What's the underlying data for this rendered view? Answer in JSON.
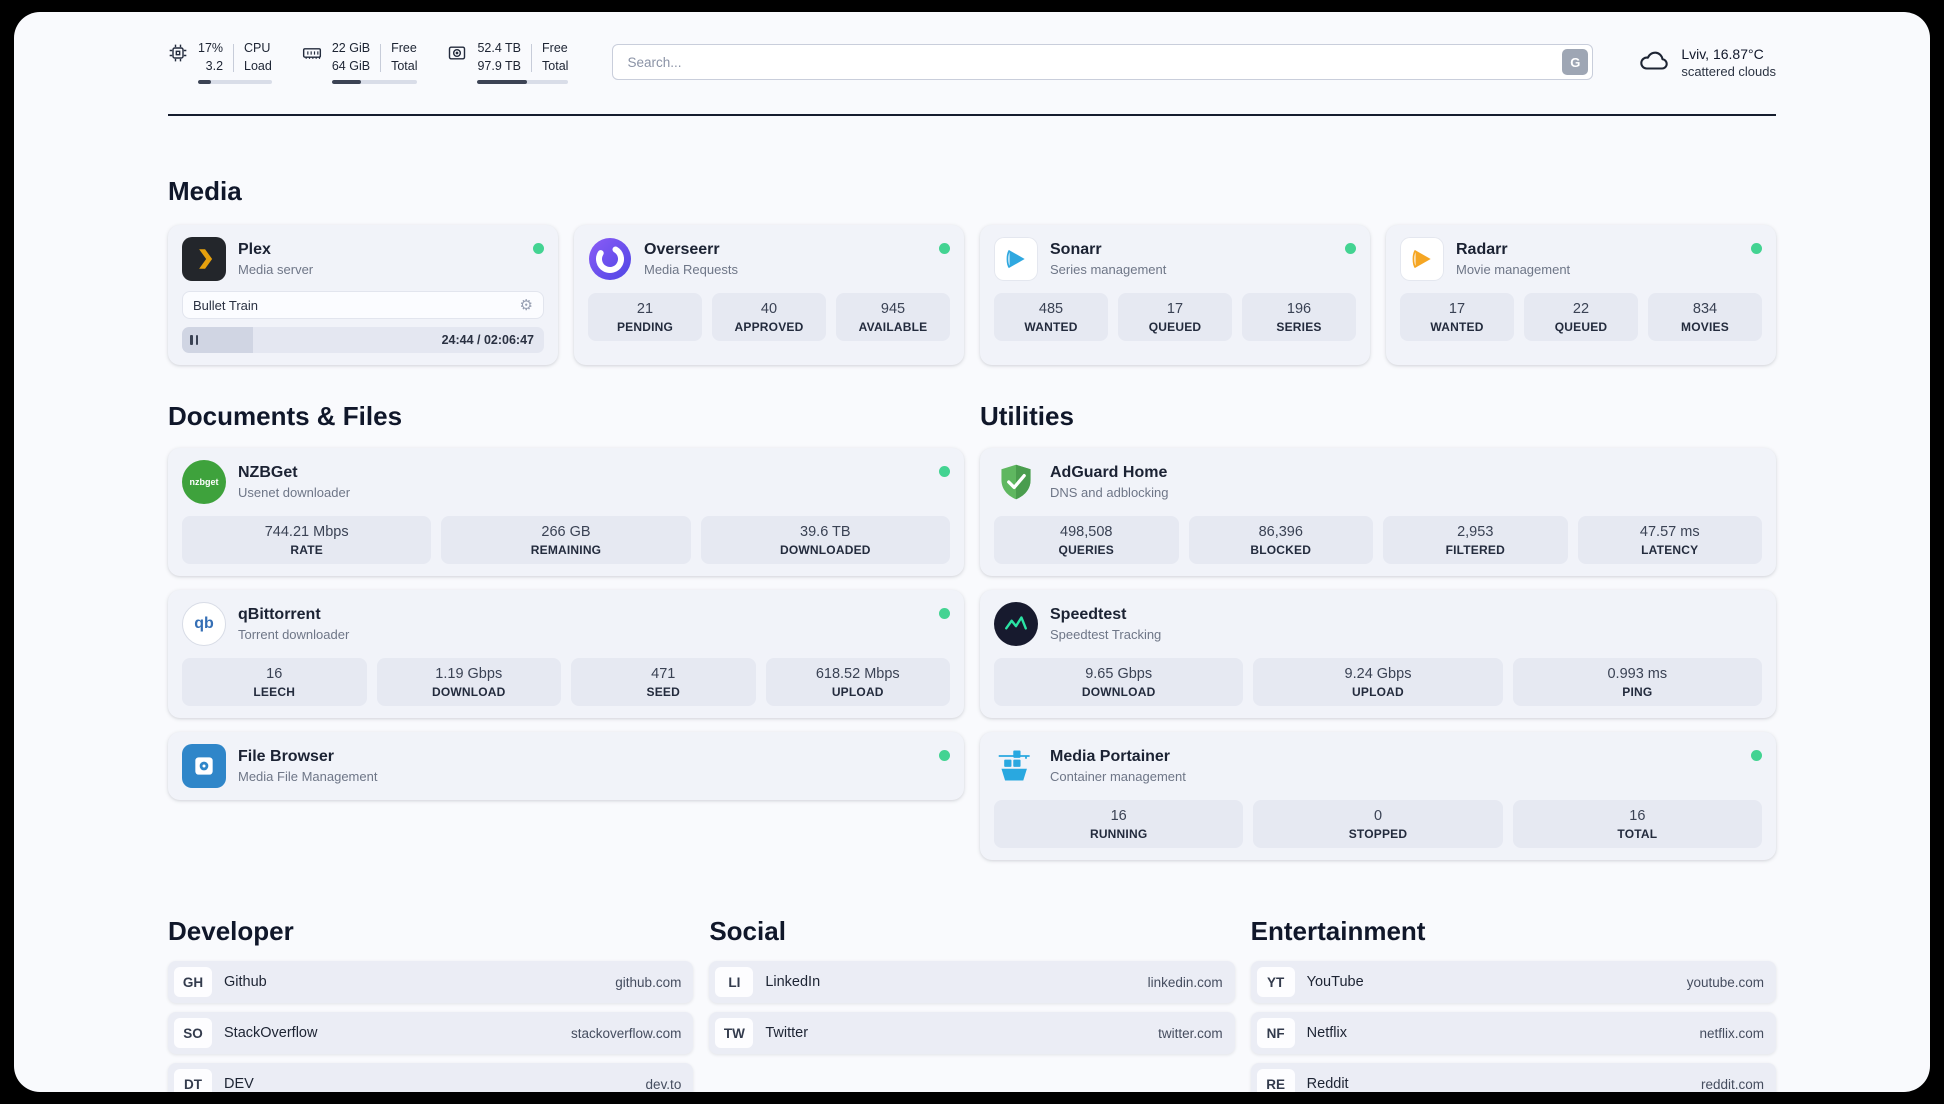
{
  "theme": {
    "status_online": "#43d392",
    "divider": "#161d2e",
    "page_bg": "#f9fafd",
    "card_bg": "#f1f3f9",
    "stat_bg": "#e6e9f2"
  },
  "topbar": {
    "cpu": {
      "value_top": "17%",
      "value_bottom": "3.2",
      "label_top": "CPU",
      "label_bottom": "Load",
      "progress_percent": 17
    },
    "memory": {
      "value_top": "22 GiB",
      "value_bottom": "64 GiB",
      "label_top": "Free",
      "label_bottom": "Total",
      "progress_percent": 34
    },
    "disk": {
      "value_top": "52.4 TB",
      "value_bottom": "97.9 TB",
      "label_top": "Free",
      "label_bottom": "Total",
      "progress_percent": 54
    },
    "search": {
      "placeholder": "Search...",
      "engine_button": "G"
    },
    "weather": {
      "location": "Lviv, 16.87°C",
      "condition": "scattered clouds"
    }
  },
  "media": {
    "heading": "Media",
    "plex": {
      "name": "Plex",
      "subtitle": "Media server",
      "now_playing": "Bullet Train",
      "time": "24:44 / 02:06:47",
      "progress_percent": 19.5
    },
    "overseerr": {
      "name": "Overseerr",
      "subtitle": "Media Requests",
      "stats": [
        {
          "value": "21",
          "label": "PENDING"
        },
        {
          "value": "40",
          "label": "APPROVED"
        },
        {
          "value": "945",
          "label": "AVAILABLE"
        }
      ]
    },
    "sonarr": {
      "name": "Sonarr",
      "subtitle": "Series management",
      "stats": [
        {
          "value": "485",
          "label": "WANTED"
        },
        {
          "value": "17",
          "label": "QUEUED"
        },
        {
          "value": "196",
          "label": "SERIES"
        }
      ]
    },
    "radarr": {
      "name": "Radarr",
      "subtitle": "Movie management",
      "stats": [
        {
          "value": "17",
          "label": "WANTED"
        },
        {
          "value": "22",
          "label": "QUEUED"
        },
        {
          "value": "834",
          "label": "MOVIES"
        }
      ]
    }
  },
  "documents": {
    "heading": "Documents & Files",
    "nzbget": {
      "name": "NZBGet",
      "subtitle": "Usenet downloader",
      "icon_text": "nzbget",
      "stats": [
        {
          "value": "744.21 Mbps",
          "label": "RATE"
        },
        {
          "value": "266 GB",
          "label": "REMAINING"
        },
        {
          "value": "39.6 TB",
          "label": "DOWNLOADED"
        }
      ]
    },
    "qbittorrent": {
      "name": "qBittorrent",
      "subtitle": "Torrent downloader",
      "icon_text": "qb",
      "stats": [
        {
          "value": "16",
          "label": "LEECH"
        },
        {
          "value": "1.19 Gbps",
          "label": "DOWNLOAD"
        },
        {
          "value": "471",
          "label": "SEED"
        },
        {
          "value": "618.52 Mbps",
          "label": "UPLOAD"
        }
      ]
    },
    "filebrowser": {
      "name": "File Browser",
      "subtitle": "Media File Management"
    }
  },
  "utilities": {
    "heading": "Utilities",
    "adguard": {
      "name": "AdGuard Home",
      "subtitle": "DNS and adblocking",
      "stats": [
        {
          "value": "498,508",
          "label": "QUERIES"
        },
        {
          "value": "86,396",
          "label": "BLOCKED"
        },
        {
          "value": "2,953",
          "label": "FILTERED"
        },
        {
          "value": "47.57 ms",
          "label": "LATENCY"
        }
      ]
    },
    "speedtest": {
      "name": "Speedtest",
      "subtitle": "Speedtest Tracking",
      "stats": [
        {
          "value": "9.65 Gbps",
          "label": "DOWNLOAD"
        },
        {
          "value": "9.24 Gbps",
          "label": "UPLOAD"
        },
        {
          "value": "0.993 ms",
          "label": "PING"
        }
      ]
    },
    "portainer": {
      "name": "Media Portainer",
      "subtitle": "Container management",
      "stats": [
        {
          "value": "16",
          "label": "RUNNING"
        },
        {
          "value": "0",
          "label": "STOPPED"
        },
        {
          "value": "16",
          "label": "TOTAL"
        }
      ]
    }
  },
  "bookmarks": {
    "developer": {
      "heading": "Developer",
      "items": [
        {
          "abbr": "GH",
          "name": "Github",
          "url": "github.com"
        },
        {
          "abbr": "SO",
          "name": "StackOverflow",
          "url": "stackoverflow.com"
        },
        {
          "abbr": "DT",
          "name": "DEV",
          "url": "dev.to"
        }
      ]
    },
    "social": {
      "heading": "Social",
      "items": [
        {
          "abbr": "LI",
          "name": "LinkedIn",
          "url": "linkedin.com"
        },
        {
          "abbr": "TW",
          "name": "Twitter",
          "url": "twitter.com"
        }
      ]
    },
    "entertainment": {
      "heading": "Entertainment",
      "items": [
        {
          "abbr": "YT",
          "name": "YouTube",
          "url": "youtube.com"
        },
        {
          "abbr": "NF",
          "name": "Netflix",
          "url": "netflix.com"
        },
        {
          "abbr": "RE",
          "name": "Reddit",
          "url": "reddit.com"
        }
      ]
    }
  }
}
